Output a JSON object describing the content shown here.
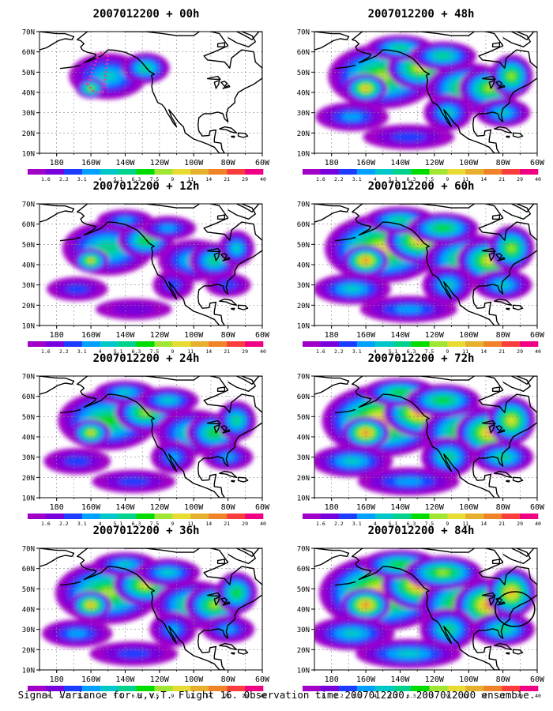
{
  "figure": {
    "caption": "Signal Variance for u,v,T. Flight 16. Observation time 2007012200. 2007012000 ensemble."
  },
  "axes": {
    "lat_ticks": [
      "10N",
      "20N",
      "30N",
      "40N",
      "50N",
      "60N",
      "70N"
    ],
    "lon_ticks": [
      "180",
      "160W",
      "140W",
      "120W",
      "100W",
      "80W",
      "60W"
    ]
  },
  "colorbar": {
    "labels": [
      "1.6",
      "2.2",
      "3.1",
      "4",
      "5.1",
      "6.3",
      "7.5",
      "9",
      "11",
      "14",
      "21",
      "29",
      "40"
    ],
    "colors": [
      "#a000c8",
      "#7800dc",
      "#1e3cff",
      "#00a0ff",
      "#00c8c8",
      "#00d28c",
      "#00dc00",
      "#a0e632",
      "#e6dc32",
      "#e6af2d",
      "#f08228",
      "#fa3c3c",
      "#f00082"
    ]
  },
  "panels": [
    {
      "title": "2007012200 + 00h",
      "intensity": 0.15
    },
    {
      "title": "2007012200 + 48h",
      "intensity": 0.62
    },
    {
      "title": "2007012200 + 12h",
      "intensity": 0.35
    },
    {
      "title": "2007012200 + 60h",
      "intensity": 0.72
    },
    {
      "title": "2007012200 + 24h",
      "intensity": 0.48
    },
    {
      "title": "2007012200 + 72h",
      "intensity": 0.8
    },
    {
      "title": "2007012200 + 36h",
      "intensity": 0.56
    },
    {
      "title": "2007012200 + 84h",
      "intensity": 0.88
    }
  ]
}
